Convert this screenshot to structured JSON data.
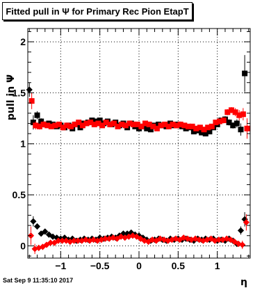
{
  "chart_data": {
    "type": "scatter",
    "title": "Fitted pull in  Ψ  for Primary Rec Pion EtapT",
    "xlabel": "η",
    "ylabel": "pull in  Ψ",
    "xlim": [
      -1.42,
      1.42
    ],
    "ylim": [
      -0.12,
      2.13
    ],
    "x_ticks": [
      -1,
      -0.5,
      0,
      0.5,
      1
    ],
    "x_tick_labels": [
      "−1",
      "−0.5",
      "0",
      "0.5",
      "1"
    ],
    "y_ticks": [
      0,
      0.5,
      1,
      1.5,
      2
    ],
    "y_tick_labels": [
      "0",
      "0.5",
      "1",
      "1.5",
      "2"
    ],
    "grid": true,
    "legend": "none",
    "series": [
      {
        "color": "#000000",
        "marker": "square",
        "x": [
          -1.35,
          -1.3,
          -1.25,
          -1.2,
          -1.15,
          -1.1,
          -1.05,
          -1.0,
          -0.95,
          -0.9,
          -0.85,
          -0.8,
          -0.75,
          -0.7,
          -0.65,
          -0.6,
          -0.55,
          -0.5,
          -0.45,
          -0.4,
          -0.35,
          -0.3,
          -0.25,
          -0.2,
          -0.15,
          -0.1,
          -0.05,
          0.0,
          0.05,
          0.1,
          0.15,
          0.2,
          0.25,
          0.3,
          0.35,
          0.4,
          0.45,
          0.5,
          0.55,
          0.6,
          0.65,
          0.7,
          0.75,
          0.8,
          0.85,
          0.9,
          0.95,
          1.0,
          1.05,
          1.1,
          1.15,
          1.2,
          1.25,
          1.3,
          1.35
        ],
        "y": [
          1.21,
          1.28,
          1.22,
          1.19,
          1.2,
          1.19,
          1.17,
          1.18,
          1.16,
          1.18,
          1.15,
          1.19,
          1.16,
          1.2,
          1.21,
          1.23,
          1.22,
          1.23,
          1.2,
          1.22,
          1.19,
          1.21,
          1.18,
          1.2,
          1.16,
          1.2,
          1.17,
          1.15,
          1.17,
          1.15,
          1.14,
          1.18,
          1.19,
          1.18,
          1.17,
          1.2,
          1.18,
          1.19,
          1.17,
          1.15,
          1.16,
          1.12,
          1.13,
          1.11,
          1.1,
          1.12,
          1.16,
          1.19,
          1.23,
          1.24,
          1.21,
          1.18,
          1.2,
          1.14,
          1.69
        ],
        "err": [
          0.07,
          0.04,
          0.03,
          0.03,
          0.02,
          0.02,
          0.02,
          0.02,
          0.02,
          0.02,
          0.02,
          0.02,
          0.02,
          0.02,
          0.02,
          0.02,
          0.02,
          0.02,
          0.02,
          0.02,
          0.02,
          0.02,
          0.02,
          0.02,
          0.02,
          0.02,
          0.02,
          0.02,
          0.02,
          0.02,
          0.02,
          0.02,
          0.02,
          0.02,
          0.02,
          0.02,
          0.02,
          0.02,
          0.02,
          0.02,
          0.02,
          0.02,
          0.02,
          0.02,
          0.02,
          0.02,
          0.02,
          0.02,
          0.02,
          0.03,
          0.03,
          0.03,
          0.04,
          0.06,
          0.18
        ]
      },
      {
        "color": "#ff0000",
        "marker": "square",
        "x": [
          -1.37,
          -1.32,
          -1.27,
          -1.22,
          -1.17,
          -1.12,
          -1.07,
          -1.02,
          -0.97,
          -0.92,
          -0.87,
          -0.82,
          -0.77,
          -0.72,
          -0.67,
          -0.62,
          -0.57,
          -0.52,
          -0.47,
          -0.42,
          -0.37,
          -0.32,
          -0.27,
          -0.22,
          -0.17,
          -0.12,
          -0.07,
          -0.02,
          0.03,
          0.08,
          0.13,
          0.18,
          0.23,
          0.28,
          0.33,
          0.38,
          0.43,
          0.48,
          0.53,
          0.58,
          0.63,
          0.68,
          0.73,
          0.78,
          0.83,
          0.88,
          0.93,
          0.98,
          1.03,
          1.08,
          1.13,
          1.18,
          1.23,
          1.28,
          1.33,
          1.38
        ],
        "y": [
          1.42,
          1.18,
          1.17,
          1.19,
          1.18,
          1.17,
          1.18,
          1.19,
          1.16,
          1.18,
          1.17,
          1.19,
          1.21,
          1.18,
          1.2,
          1.21,
          1.19,
          1.2,
          1.18,
          1.21,
          1.19,
          1.2,
          1.17,
          1.19,
          1.18,
          1.2,
          1.19,
          1.19,
          1.17,
          1.2,
          1.19,
          1.17,
          1.15,
          1.18,
          1.19,
          1.17,
          1.19,
          1.18,
          1.19,
          1.18,
          1.17,
          1.17,
          1.15,
          1.16,
          1.14,
          1.16,
          1.17,
          1.21,
          1.22,
          1.23,
          1.31,
          1.33,
          1.31,
          1.28,
          1.29,
          1.15
        ],
        "err": [
          0.08,
          0.04,
          0.03,
          0.03,
          0.02,
          0.02,
          0.02,
          0.02,
          0.02,
          0.02,
          0.02,
          0.02,
          0.02,
          0.02,
          0.02,
          0.02,
          0.02,
          0.02,
          0.02,
          0.02,
          0.02,
          0.02,
          0.02,
          0.02,
          0.02,
          0.02,
          0.02,
          0.02,
          0.02,
          0.02,
          0.02,
          0.02,
          0.02,
          0.02,
          0.02,
          0.02,
          0.02,
          0.02,
          0.02,
          0.02,
          0.02,
          0.02,
          0.02,
          0.02,
          0.02,
          0.02,
          0.02,
          0.02,
          0.02,
          0.03,
          0.03,
          0.03,
          0.04,
          0.05,
          0.06,
          0.1
        ]
      },
      {
        "color": "#000000",
        "marker": "diamond",
        "x": [
          -1.4,
          -1.35,
          -1.3,
          -1.25,
          -1.2,
          -1.15,
          -1.1,
          -1.05,
          -1.0,
          -0.95,
          -0.9,
          -0.85,
          -0.8,
          -0.75,
          -0.7,
          -0.65,
          -0.6,
          -0.55,
          -0.5,
          -0.45,
          -0.4,
          -0.35,
          -0.3,
          -0.25,
          -0.2,
          -0.15,
          -0.1,
          -0.05,
          0.0,
          0.05,
          0.1,
          0.15,
          0.2,
          0.25,
          0.3,
          0.35,
          0.4,
          0.45,
          0.5,
          0.55,
          0.6,
          0.65,
          0.7,
          0.75,
          0.8,
          0.85,
          0.9,
          0.95,
          1.0,
          1.05,
          1.1,
          1.15,
          1.2,
          1.25,
          1.3,
          1.35
        ],
        "y": [
          1.53,
          0.24,
          0.19,
          0.12,
          0.14,
          0.11,
          0.09,
          0.08,
          0.07,
          0.08,
          0.06,
          0.07,
          0.05,
          0.06,
          0.07,
          0.06,
          0.07,
          0.06,
          0.08,
          0.07,
          0.08,
          0.09,
          0.08,
          0.1,
          0.12,
          0.12,
          0.13,
          0.11,
          0.1,
          0.08,
          0.06,
          0.05,
          0.06,
          0.07,
          0.06,
          0.05,
          0.07,
          0.06,
          0.07,
          0.06,
          0.07,
          0.06,
          0.05,
          0.07,
          0.06,
          0.07,
          0.06,
          0.07,
          0.05,
          0.06,
          0.05,
          0.07,
          0.05,
          0.02,
          0.15,
          0.26
        ],
        "err": [
          0.07,
          0.05,
          0.03,
          0.02,
          0.02,
          0.02,
          0.02,
          0.02,
          0.02,
          0.02,
          0.02,
          0.02,
          0.02,
          0.02,
          0.02,
          0.02,
          0.02,
          0.02,
          0.02,
          0.02,
          0.02,
          0.02,
          0.02,
          0.02,
          0.02,
          0.02,
          0.02,
          0.02,
          0.02,
          0.02,
          0.02,
          0.02,
          0.02,
          0.02,
          0.02,
          0.02,
          0.02,
          0.02,
          0.02,
          0.02,
          0.02,
          0.02,
          0.02,
          0.02,
          0.02,
          0.02,
          0.02,
          0.02,
          0.02,
          0.02,
          0.02,
          0.02,
          0.03,
          0.03,
          0.04,
          0.07
        ]
      },
      {
        "color": "#ff0000",
        "marker": "diamond",
        "x": [
          -1.38,
          -1.33,
          -1.28,
          -1.23,
          -1.18,
          -1.13,
          -1.08,
          -1.03,
          -0.98,
          -0.93,
          -0.88,
          -0.83,
          -0.78,
          -0.73,
          -0.68,
          -0.63,
          -0.58,
          -0.53,
          -0.48,
          -0.43,
          -0.38,
          -0.33,
          -0.28,
          -0.23,
          -0.18,
          -0.13,
          -0.08,
          -0.03,
          0.02,
          0.07,
          0.12,
          0.17,
          0.22,
          0.27,
          0.32,
          0.37,
          0.42,
          0.47,
          0.52,
          0.57,
          0.62,
          0.67,
          0.72,
          0.77,
          0.82,
          0.87,
          0.92,
          0.97,
          1.02,
          1.07,
          1.12,
          1.17,
          1.22,
          1.27,
          1.32,
          1.37
        ],
        "y": [
          0.1,
          -0.03,
          -0.02,
          -0.01,
          0.01,
          0.03,
          0.03,
          0.05,
          0.05,
          0.05,
          0.04,
          0.05,
          0.05,
          0.05,
          0.06,
          0.05,
          0.06,
          0.05,
          0.06,
          0.07,
          0.07,
          0.08,
          0.07,
          0.09,
          0.08,
          0.09,
          0.1,
          0.09,
          0.07,
          0.05,
          0.04,
          0.06,
          0.05,
          0.07,
          0.06,
          0.05,
          0.06,
          0.07,
          0.06,
          0.08,
          0.07,
          0.06,
          0.07,
          0.06,
          0.05,
          0.06,
          0.07,
          0.05,
          0.06,
          0.06,
          0.07,
          0.06,
          0.04,
          0.02,
          0.01,
          0.23
        ],
        "err": [
          0.09,
          0.05,
          0.03,
          0.02,
          0.02,
          0.02,
          0.02,
          0.02,
          0.02,
          0.02,
          0.02,
          0.02,
          0.02,
          0.02,
          0.02,
          0.02,
          0.02,
          0.02,
          0.02,
          0.02,
          0.02,
          0.02,
          0.02,
          0.02,
          0.02,
          0.02,
          0.02,
          0.02,
          0.02,
          0.02,
          0.02,
          0.02,
          0.02,
          0.02,
          0.02,
          0.02,
          0.02,
          0.02,
          0.02,
          0.02,
          0.02,
          0.02,
          0.02,
          0.02,
          0.02,
          0.02,
          0.02,
          0.02,
          0.02,
          0.02,
          0.02,
          0.02,
          0.03,
          0.03,
          0.04,
          0.08
        ]
      }
    ]
  },
  "footer": {
    "timestamp": "Sat Sep  9 11:35:10 2017"
  }
}
